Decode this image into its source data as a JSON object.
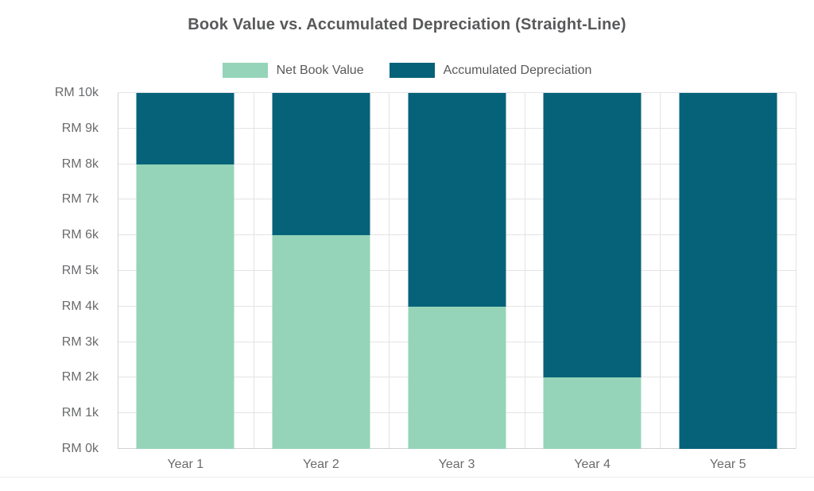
{
  "chart_data": {
    "type": "bar",
    "stacked": true,
    "title": "Book Value vs. Accumulated Depreciation (Straight-Line)",
    "categories": [
      "Year 1",
      "Year 2",
      "Year 3",
      "Year 4",
      "Year 5"
    ],
    "series": [
      {
        "name": "Net Book Value",
        "color": "#95d4b9",
        "values": [
          8000,
          6000,
          4000,
          2000,
          0
        ]
      },
      {
        "name": "Accumulated Depreciation",
        "color": "#066279",
        "values": [
          2000,
          4000,
          6000,
          8000,
          10000
        ]
      }
    ],
    "xlabel": "",
    "ylabel": "",
    "y_axis": {
      "min": 0,
      "max": 10000,
      "tick_step": 1000,
      "tick_labels": [
        "RM 0k",
        "RM 1k",
        "RM 2k",
        "RM 3k",
        "RM 4k",
        "RM 5k",
        "RM 6k",
        "RM 7k",
        "RM 8k",
        "RM 9k",
        "RM 10k"
      ]
    },
    "grid": true,
    "legend_position": "top",
    "colors": {
      "grid": "#e4e4e4",
      "axis": "#d2d2d2",
      "title_text": "#58595b",
      "axis_text": "#6a6b6d",
      "legend_text": "#58595b"
    }
  }
}
